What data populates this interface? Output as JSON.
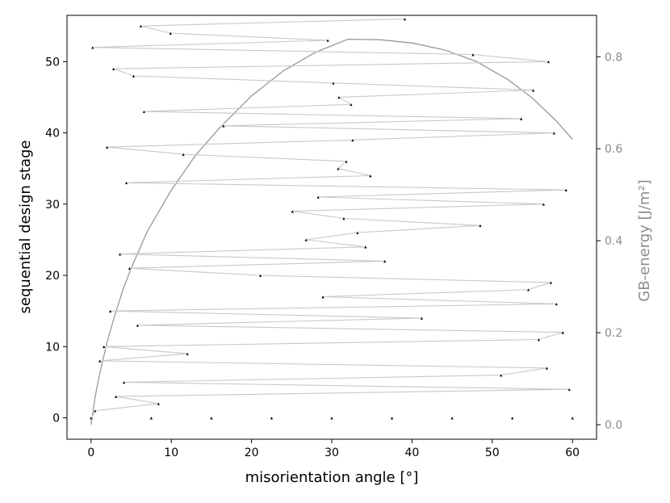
{
  "chart_data": {
    "type": "scatter",
    "xlabel": "misorientation angle [°]",
    "ylabel": "sequential design stage",
    "y2label": "GB-energy [J/m²]",
    "xlim": [
      -3,
      63
    ],
    "ylim": [
      -3,
      56.5
    ],
    "y2lim": [
      -0.0316,
      0.89
    ],
    "xticks": [
      0,
      10,
      20,
      30,
      40,
      50,
      60
    ],
    "yticks": [
      0,
      10,
      20,
      30,
      40,
      50
    ],
    "y2ticks": [
      0.0,
      0.2,
      0.4,
      0.6,
      0.8
    ],
    "y2tick_labels": [
      "0.0",
      "0.2",
      "0.4",
      "0.6",
      "0.8"
    ],
    "grid": false,
    "colors": {
      "path": "#c8c8c8",
      "points": "#000000",
      "energy_curve": "#999999",
      "right_axis_text": "#8c8c8c"
    },
    "series": [
      {
        "kind": "initial_points",
        "x": [
          0,
          7.5,
          15,
          22.5,
          30,
          37.5,
          45,
          52.5,
          60
        ],
        "y": [
          0,
          0,
          0,
          0,
          0,
          0,
          0,
          0,
          0
        ]
      },
      {
        "kind": "sequential_path",
        "x": [
          0.1,
          0.5,
          8.4,
          3.1,
          59.6,
          4.1,
          51.1,
          56.8,
          1.1,
          12.0,
          1.6,
          55.8,
          58.8,
          5.8,
          41.2,
          2.4,
          58.0,
          28.9,
          54.5,
          57.3,
          21.1,
          4.8,
          36.6,
          3.6,
          34.2,
          26.8,
          33.2,
          48.5,
          31.5,
          25.1,
          56.4,
          28.3,
          59.2,
          4.4,
          34.8,
          30.8,
          31.8,
          11.5,
          2.0,
          32.6,
          57.7,
          16.5,
          53.6,
          6.6,
          32.4,
          30.9,
          55.1,
          30.2,
          5.3,
          2.8,
          57.0,
          47.6,
          0.2,
          29.5,
          9.9,
          6.2,
          39.1
        ],
        "y": [
          0,
          1,
          2,
          3,
          4,
          5,
          6,
          7,
          8,
          9,
          10,
          11,
          12,
          13,
          14,
          15,
          16,
          17,
          18,
          19,
          20,
          21,
          22,
          23,
          24,
          25,
          26,
          27,
          28,
          29,
          30,
          31,
          32,
          33,
          34,
          35,
          36,
          37,
          38,
          39,
          40,
          41,
          42,
          43,
          44,
          45,
          46,
          47,
          48,
          49,
          50,
          51,
          52,
          53,
          54,
          55,
          56
        ]
      },
      {
        "kind": "gb_energy_curve",
        "axis": "right",
        "x": [
          0,
          0.5,
          1,
          2,
          3,
          4,
          5,
          7,
          10,
          13,
          16,
          20,
          24,
          28,
          32,
          36,
          40,
          44,
          48,
          52,
          55,
          58,
          60
        ],
        "y": [
          0.0,
          0.06,
          0.105,
          0.18,
          0.24,
          0.295,
          0.34,
          0.42,
          0.51,
          0.585,
          0.645,
          0.715,
          0.77,
          0.81,
          0.838,
          0.837,
          0.83,
          0.815,
          0.79,
          0.75,
          0.71,
          0.66,
          0.62
        ]
      }
    ]
  }
}
